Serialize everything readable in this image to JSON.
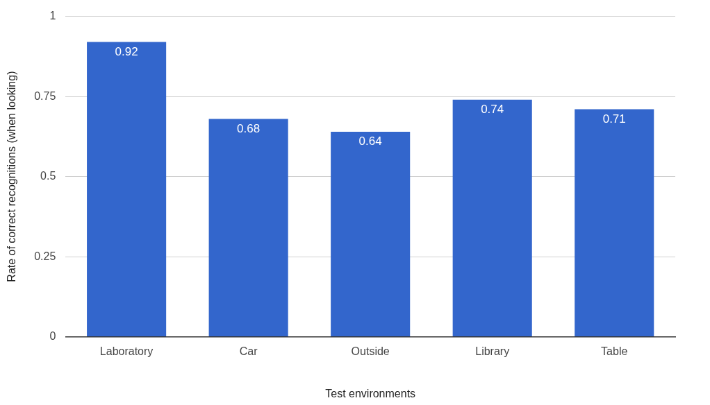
{
  "chart_data": {
    "type": "bar",
    "xlabel": "Test environments",
    "ylabel": "Rate of correct recognitions (when looking)",
    "categories": [
      "Laboratory",
      "Car",
      "Outside",
      "Library",
      "Table"
    ],
    "values": [
      0.92,
      0.68,
      0.64,
      0.74,
      0.71
    ],
    "color": "#3366cc",
    "ylim": [
      0,
      1
    ],
    "yticks": [
      0,
      0.25,
      0.5,
      0.75,
      1
    ],
    "grid": "y",
    "data_labels": true,
    "legend": false
  }
}
